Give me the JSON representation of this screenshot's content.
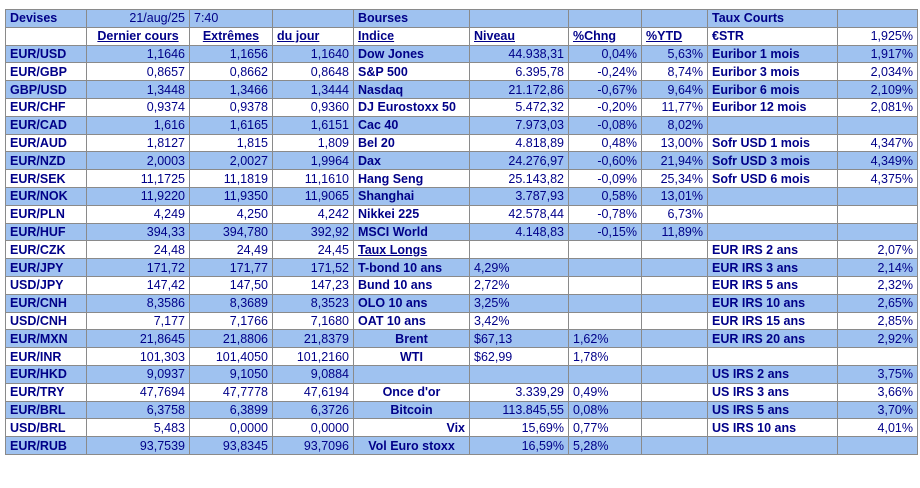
{
  "devises": {
    "title": "Devises",
    "date": "21/aug/25",
    "time": "7:40",
    "columns": [
      "Dernier cours",
      "Extrêmes",
      "du jour"
    ],
    "rows": [
      [
        "EUR/USD",
        "1,1646",
        "1,1656",
        "1,1640"
      ],
      [
        "EUR/GBP",
        "0,8657",
        "0,8662",
        "0,8648"
      ],
      [
        "GBP/USD",
        "1,3448",
        "1,3466",
        "1,3444"
      ],
      [
        "EUR/CHF",
        "0,9374",
        "0,9378",
        "0,9360"
      ],
      [
        "EUR/CAD",
        "1,616",
        "1,6165",
        "1,6151"
      ],
      [
        "EUR/AUD",
        "1,8127",
        "1,815",
        "1,809"
      ],
      [
        "EUR/NZD",
        "2,0003",
        "2,0027",
        "1,9964"
      ],
      [
        "EUR/SEK",
        "11,1725",
        "11,1819",
        "11,1610"
      ],
      [
        "EUR/NOK",
        "11,9220",
        "11,9350",
        "11,9065"
      ],
      [
        "EUR/PLN",
        "4,249",
        "4,250",
        "4,242"
      ],
      [
        "EUR/HUF",
        "394,33",
        "394,780",
        "392,92"
      ],
      [
        "EUR/CZK",
        "24,48",
        "24,49",
        "24,45"
      ],
      [
        "EUR/JPY",
        "171,72",
        "171,77",
        "171,52"
      ],
      [
        "USD/JPY",
        "147,42",
        "147,50",
        "147,23"
      ],
      [
        "EUR/CNH",
        "8,3586",
        "8,3689",
        "8,3523"
      ],
      [
        "USD/CNH",
        "7,177",
        "7,1766",
        "7,1680"
      ],
      [
        "EUR/MXN",
        "21,8645",
        "21,8806",
        "21,8379"
      ],
      [
        "EUR/INR",
        "101,303",
        "101,4050",
        "101,2160"
      ],
      [
        "EUR/HKD",
        "9,0937",
        "9,1050",
        "9,0884"
      ],
      [
        "EUR/TRY",
        "47,7694",
        "47,7778",
        "47,6194"
      ],
      [
        "EUR/BRL",
        "6,3758",
        "6,3899",
        "6,3726"
      ],
      [
        "USD/BRL",
        "5,483",
        "0,0000",
        "0,0000"
      ],
      [
        "EUR/RUB",
        "93,7539",
        "93,8345",
        "93,7096"
      ]
    ]
  },
  "bourses": {
    "title": "Bourses",
    "columns": [
      "Indice",
      "Niveau",
      "%Chng",
      "%YTD"
    ],
    "rows": [
      [
        "Dow Jones",
        "44.938,31",
        "0,04%",
        "5,63%"
      ],
      [
        "S&P 500",
        "6.395,78",
        "-0,24%",
        "8,74%"
      ],
      [
        "Nasdaq",
        "21.172,86",
        "-0,67%",
        "9,64%"
      ],
      [
        "DJ Eurostoxx 50",
        "5.472,32",
        "-0,20%",
        "11,77%"
      ],
      [
        "Cac 40",
        "7.973,03",
        "-0,08%",
        "8,02%"
      ],
      [
        "Bel 20",
        "4.818,89",
        "0,48%",
        "13,00%"
      ],
      [
        "Dax",
        "24.276,97",
        "-0,60%",
        "21,94%"
      ],
      [
        "Hang Seng",
        "25.143,82",
        "-0,09%",
        "25,34%"
      ],
      [
        "Shanghai",
        "3.787,93",
        "0,58%",
        "13,01%"
      ],
      [
        "Nikkei 225",
        "42.578,44",
        "-0,78%",
        "6,73%"
      ],
      [
        "MSCI World",
        "4.148,83",
        "-0,15%",
        "11,89%"
      ]
    ],
    "taux_longs_title": "Taux Longs",
    "taux_longs": [
      [
        "T-bond 10 ans",
        "4,29%"
      ],
      [
        "Bund 10 ans",
        "2,72%"
      ],
      [
        "OLO 10 ans",
        "3,25%"
      ],
      [
        "OAT 10 ans",
        "3,42%"
      ]
    ],
    "commodities": [
      [
        "Brent",
        "$67,13",
        "1,62%"
      ],
      [
        "WTI",
        "$62,99",
        "1,78%"
      ]
    ],
    "others": [
      [
        "Once d'or",
        "3.339,29",
        "0,49%"
      ],
      [
        "Bitcoin",
        "113.845,55",
        "0,08%"
      ],
      [
        "Vix",
        "15,69%",
        "0,77%"
      ],
      [
        "Vol Euro stoxx",
        "16,59%",
        "5,28%"
      ]
    ]
  },
  "taux_courts": {
    "title": "Taux Courts",
    "estr": [
      "€STR",
      "1,925%"
    ],
    "euribor": [
      [
        "Euribor 1 mois",
        "1,917%"
      ],
      [
        "Euribor 3 mois",
        "2,034%"
      ],
      [
        "Euribor 6 mois",
        "2,109%"
      ],
      [
        "Euribor 12 mois",
        "2,081%"
      ]
    ],
    "sofr": [
      [
        "Sofr USD 1 mois",
        "4,347%"
      ],
      [
        "Sofr USD 3 mois",
        "4,349%"
      ],
      [
        "Sofr USD 6 mois",
        "4,375%"
      ]
    ],
    "eur_irs": [
      [
        "EUR IRS 2 ans",
        "2,07%"
      ],
      [
        "EUR IRS 3 ans",
        "2,14%"
      ],
      [
        "EUR IRS 5 ans",
        "2,32%"
      ],
      [
        "EUR IRS 10 ans",
        "2,65%"
      ],
      [
        "EUR IRS 15 ans",
        "2,85%"
      ],
      [
        "EUR IRS 20 ans",
        "2,92%"
      ]
    ],
    "us_irs": [
      [
        "US IRS 2 ans",
        "3,75%"
      ],
      [
        "US IRS 3 ans",
        "3,66%"
      ],
      [
        "US IRS 5 ans",
        "3,70%"
      ],
      [
        "US IRS 10 ans",
        "4,01%"
      ]
    ]
  },
  "colors": {
    "cell_blue": "#9fc2f0",
    "text": "#000088",
    "border": "#8a8a8a"
  }
}
